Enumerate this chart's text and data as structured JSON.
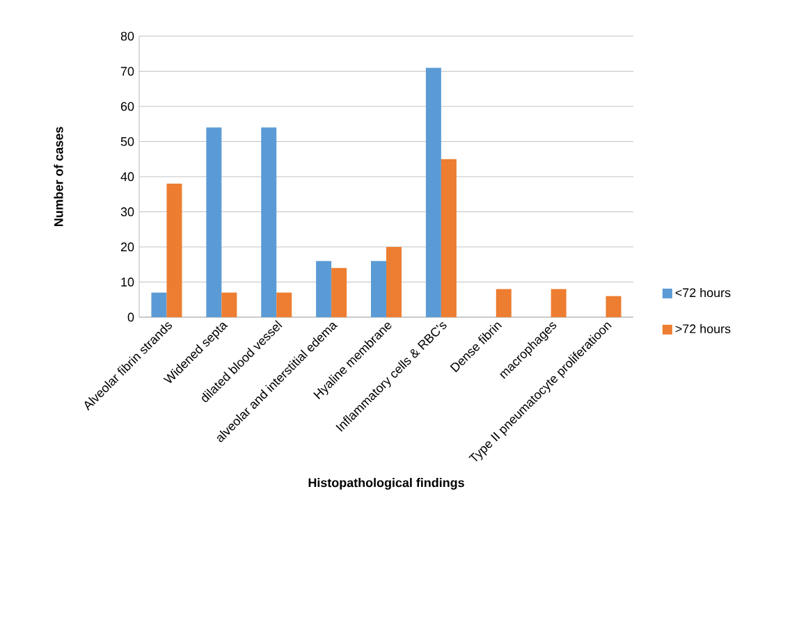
{
  "chart_data": {
    "type": "bar",
    "xlabel": "Histopathological  findings",
    "ylabel": "Number of cases",
    "categories": [
      "Alveolar fibrin strands",
      "Widened septa",
      "dilated blood vessel",
      "alveolar and interstitial edema",
      "Hyaline membrane",
      "Inflammatory cells & RBC's",
      "Dense fibrin",
      "macrophages",
      "Type II pneumatocyte proliferatioon"
    ],
    "series": [
      {
        "name": "<72 hours",
        "color": "#5b9bd5",
        "values": [
          7,
          54,
          54,
          16,
          16,
          71,
          null,
          null,
          null
        ]
      },
      {
        "name": ">72 hours",
        "color": "#ed7d31",
        "values": [
          38,
          7,
          7,
          14,
          20,
          45,
          8,
          8,
          6
        ]
      }
    ],
    "ylim": [
      0,
      80
    ],
    "yticks": [
      0,
      10,
      20,
      30,
      40,
      50,
      60,
      70,
      80
    ],
    "grid": "y",
    "legend": "right"
  }
}
